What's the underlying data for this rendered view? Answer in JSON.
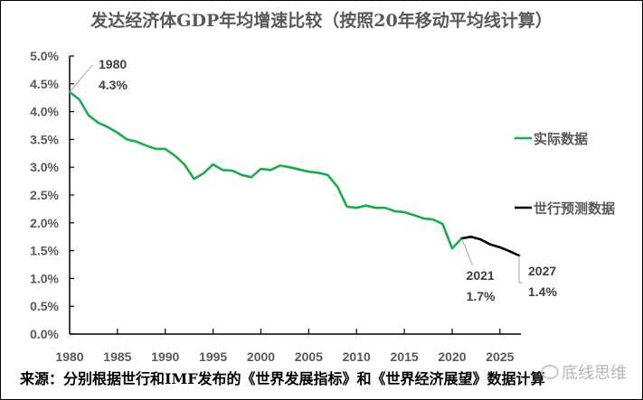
{
  "chart_data": {
    "type": "line",
    "title": "发达经济体GDP年均增速比较（按照20年移动平均线计算）",
    "xlabel": "",
    "ylabel": "",
    "xlim": [
      1980,
      2027
    ],
    "ylim": [
      0,
      5.0
    ],
    "x_ticks": [
      1980,
      1985,
      1990,
      1995,
      2000,
      2005,
      2010,
      2015,
      2020,
      2025
    ],
    "x_tick_labels": [
      "1980",
      "1985",
      "1990",
      "1995",
      "2000",
      "2005",
      "2010",
      "2015",
      "2020",
      "2025"
    ],
    "y_ticks": [
      0,
      0.5,
      1.0,
      1.5,
      2.0,
      2.5,
      3.0,
      3.5,
      4.0,
      4.5,
      5.0
    ],
    "y_tick_labels": [
      "0.0%",
      "0.5%",
      "1.0%",
      "1.5%",
      "2.0%",
      "2.5%",
      "3.0%",
      "3.5%",
      "4.0%",
      "4.5%",
      "5.0%"
    ],
    "grid": false,
    "legend_position": "right",
    "series": [
      {
        "name": "实际数据",
        "color": "#1aab4e",
        "x": [
          1980,
          1981,
          1982,
          1983,
          1984,
          1985,
          1986,
          1987,
          1988,
          1989,
          1990,
          1991,
          1992,
          1993,
          1994,
          1995,
          1996,
          1997,
          1998,
          1999,
          2000,
          2001,
          2002,
          2003,
          2004,
          2005,
          2006,
          2007,
          2008,
          2009,
          2010,
          2011,
          2012,
          2013,
          2014,
          2015,
          2016,
          2017,
          2018,
          2019,
          2020,
          2021
        ],
        "values": [
          4.35,
          4.22,
          3.93,
          3.8,
          3.72,
          3.62,
          3.5,
          3.46,
          3.39,
          3.33,
          3.33,
          3.21,
          3.05,
          2.79,
          2.89,
          3.05,
          2.95,
          2.94,
          2.86,
          2.82,
          2.97,
          2.95,
          3.03,
          3.0,
          2.96,
          2.92,
          2.9,
          2.86,
          2.65,
          2.29,
          2.27,
          2.31,
          2.27,
          2.27,
          2.21,
          2.19,
          2.14,
          2.08,
          2.06,
          1.98,
          1.54,
          1.72
        ]
      },
      {
        "name": "世行预测数据",
        "color": "#000000",
        "x": [
          2021,
          2022,
          2023,
          2024,
          2025,
          2026,
          2027
        ],
        "values": [
          1.72,
          1.75,
          1.7,
          1.61,
          1.56,
          1.49,
          1.41
        ]
      }
    ],
    "annotations": [
      {
        "year_label": "1980",
        "value_label": "4.3%",
        "x": 1980,
        "y": 4.35
      },
      {
        "year_label": "2021",
        "value_label": "1.7%",
        "x": 2021,
        "y": 1.72
      },
      {
        "year_label": "2027",
        "value_label": "1.4%",
        "x": 2027,
        "y": 1.41
      }
    ]
  },
  "source_note": "来源：分别根据世行和IMF发布的《世界发展指标》和《世界经济展望》数据计算",
  "watermark": "底线思维"
}
